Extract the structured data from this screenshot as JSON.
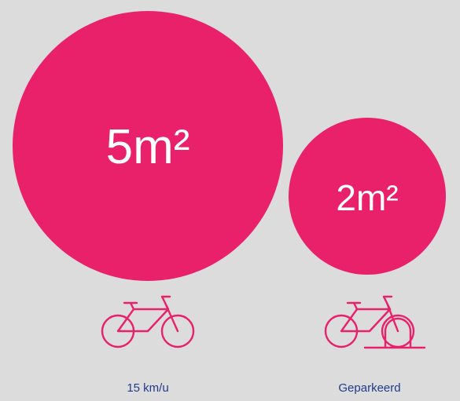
{
  "items": [
    {
      "label": "5m²",
      "caption": "15 km/u"
    },
    {
      "label": "2m²",
      "caption": "Geparkeerd"
    }
  ]
}
